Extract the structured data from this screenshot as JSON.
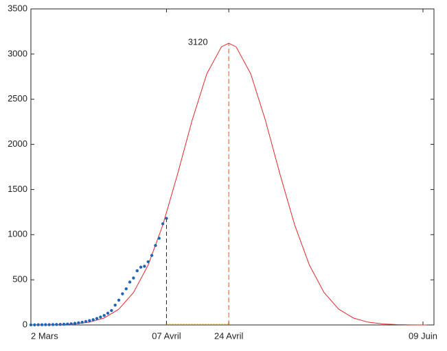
{
  "chart_data": {
    "type": "line",
    "xlim": [
      0,
      110
    ],
    "xticks": [
      {
        "value": 0,
        "label": "2 Mars"
      },
      {
        "value": 37,
        "label": "07 Avril"
      },
      {
        "value": 54,
        "label": "24 Avril"
      },
      {
        "value": 107,
        "label": "09 Juin"
      }
    ],
    "ylim": [
      0,
      3500
    ],
    "yticks": [
      0,
      500,
      1000,
      1500,
      2000,
      2500,
      3000,
      3500
    ],
    "series": [
      {
        "style": "line",
        "color": "#e8262a",
        "x": [
          0,
          4,
          8,
          12,
          16,
          20,
          24,
          28,
          32,
          36,
          40,
          44,
          48,
          52,
          54,
          56,
          60,
          64,
          68,
          72,
          76,
          80,
          84,
          88,
          92,
          96,
          100,
          104,
          108
        ],
        "values": [
          0.3,
          1.0,
          3.6,
          11,
          31,
          77,
          175,
          359,
          663,
          1106,
          1666,
          2266,
          2781,
          3080,
          3120,
          3080,
          2781,
          2266,
          1666,
          1106,
          663,
          359,
          175,
          77,
          31,
          11,
          3.6,
          1.0,
          0.3
        ]
      },
      {
        "style": "dots",
        "color": "#1f66b8",
        "x": [
          0,
          1,
          2,
          3,
          4,
          5,
          6,
          7,
          8,
          9,
          10,
          11,
          12,
          13,
          14,
          15,
          16,
          17,
          18,
          19,
          20,
          21,
          22,
          23,
          24,
          25,
          26,
          27,
          28,
          29,
          30,
          31,
          32,
          33,
          34,
          35,
          36,
          37
        ],
        "values": [
          1,
          1,
          2,
          2,
          3,
          3,
          4,
          5,
          6,
          8,
          10,
          13,
          18,
          24,
          30,
          38,
          48,
          58,
          72,
          88,
          105,
          130,
          160,
          220,
          275,
          345,
          400,
          475,
          520,
          600,
          640,
          650,
          700,
          770,
          880,
          960,
          1120,
          1180
        ]
      }
    ],
    "peak": {
      "x": 54,
      "y": 3120
    }
  }
}
